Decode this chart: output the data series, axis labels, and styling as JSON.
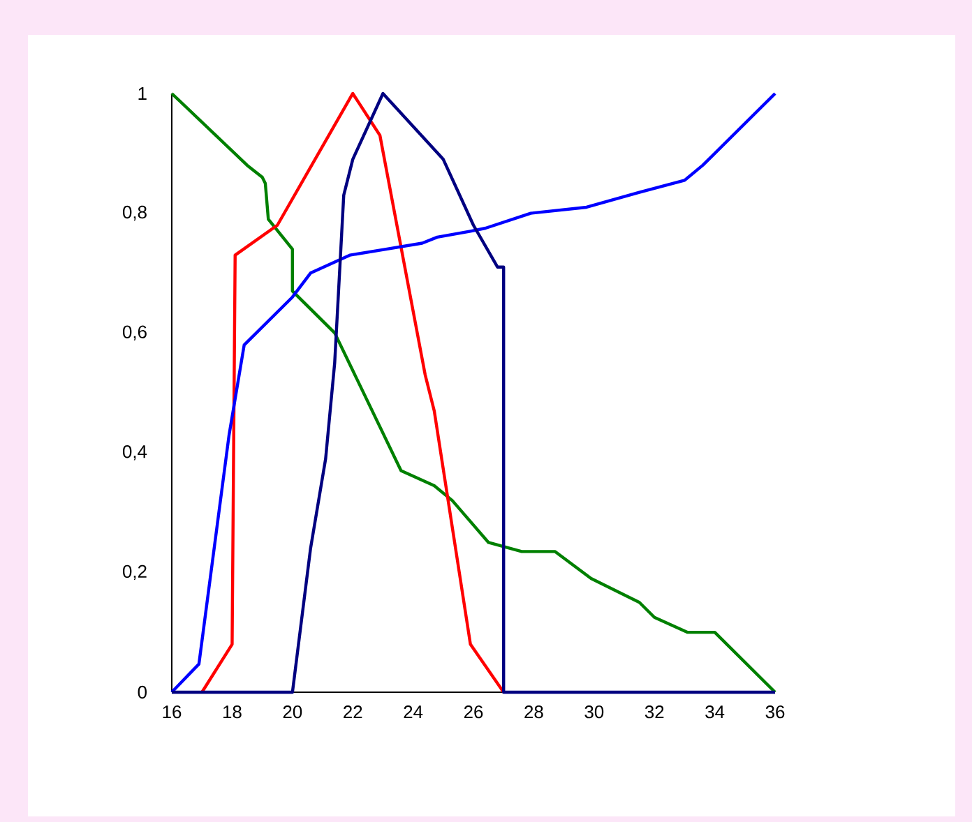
{
  "chart_data": {
    "type": "line",
    "xlim": [
      16,
      36
    ],
    "ylim": [
      0,
      1
    ],
    "xticks": [
      16,
      18,
      20,
      22,
      24,
      26,
      28,
      30,
      32,
      34,
      36
    ],
    "yticks": [
      0,
      {
        "value": 0.2,
        "label": "0,2"
      },
      {
        "value": 0.4,
        "label": "0,4"
      },
      {
        "value": 0.6,
        "label": "0,6"
      },
      {
        "value": 0.8,
        "label": "0,8"
      },
      1
    ],
    "grid": false,
    "legend": false,
    "marker": "none",
    "line_style": "solid",
    "series": [
      {
        "color": "#008000",
        "x": [
          16,
          18.5,
          19,
          19.1,
          19.2,
          20,
          20,
          20.8,
          21.4,
          23.6,
          24.7,
          25.3,
          26.5,
          27.6,
          28.7,
          29.9,
          31.5,
          32,
          33.1,
          34,
          36
        ],
        "values": [
          1,
          0.88,
          0.86,
          0.85,
          0.79,
          0.74,
          0.67,
          0.63,
          0.6,
          0.37,
          0.345,
          0.32,
          0.25,
          0.235,
          0.235,
          0.19,
          0.15,
          0.125,
          0.1,
          0.1,
          0
        ]
      },
      {
        "color": "#ff0000",
        "x": [
          17,
          18,
          18.1,
          19.5,
          22,
          22.9,
          24.4,
          24.7,
          25.9,
          27
        ],
        "values": [
          0,
          0.08,
          0.73,
          0.78,
          1,
          0.93,
          0.53,
          0.47,
          0.08,
          0
        ]
      },
      {
        "color": "#0000ff",
        "x": [
          16,
          16.9,
          17.9,
          18.4,
          20,
          20.6,
          21.9,
          23.1,
          24.3,
          24.8,
          25.9,
          26.4,
          27.9,
          29.75,
          31.5,
          33,
          33.6,
          36
        ],
        "values": [
          0,
          0.047,
          0.43,
          0.58,
          0.66,
          0.7,
          0.73,
          0.74,
          0.75,
          0.76,
          0.77,
          0.775,
          0.8,
          0.81,
          0.835,
          0.855,
          0.88,
          1
        ]
      },
      {
        "color": "#000080",
        "x": [
          16,
          20,
          20.6,
          21.1,
          21.4,
          21.7,
          22,
          23,
          25,
          26,
          26.8,
          27,
          27,
          36
        ],
        "values": [
          0,
          0,
          0.24,
          0.39,
          0.55,
          0.83,
          0.89,
          1,
          0.89,
          0.78,
          0.71,
          0.71,
          0,
          0
        ]
      }
    ]
  }
}
